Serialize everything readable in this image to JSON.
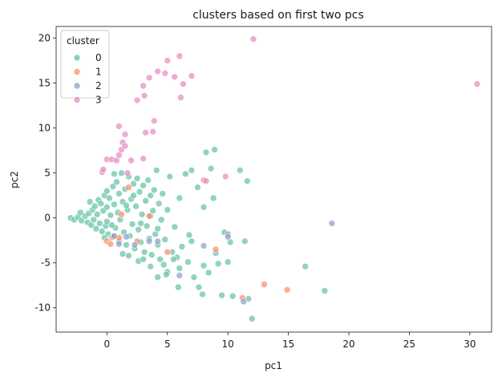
{
  "chart_data": {
    "type": "scatter",
    "title": "clusters based on first two pcs",
    "xlabel": "pc1",
    "ylabel": "pc2",
    "xlim": [
      -4.2,
      31.8
    ],
    "ylim": [
      -12.7,
      21.3
    ],
    "x_ticks": [
      0,
      5,
      10,
      15,
      20,
      25,
      30
    ],
    "y_ticks": [
      -10,
      -5,
      0,
      5,
      10,
      15,
      20
    ],
    "grid": false,
    "legend": {
      "title": "cluster",
      "position": "top-left"
    },
    "series": [
      {
        "name": "0",
        "color": "#66c2a5",
        "points": [
          [
            -3,
            0
          ],
          [
            -2.7,
            -0.2
          ],
          [
            -2.4,
            0.1
          ],
          [
            -2.1,
            -0.3
          ],
          [
            -1.8,
            0.2
          ],
          [
            -1.6,
            -0.5
          ],
          [
            -1.5,
            0.5
          ],
          [
            -1.3,
            -0.8
          ],
          [
            -1.2,
            0.9
          ],
          [
            -1.1,
            -0.2
          ],
          [
            -1,
            1.3
          ],
          [
            -0.9,
            -1.2
          ],
          [
            -0.8,
            0.4
          ],
          [
            -0.7,
            2
          ],
          [
            -0.6,
            -0.6
          ],
          [
            -0.5,
            1.6
          ],
          [
            -0.4,
            -1.5
          ],
          [
            -0.3,
            0.8
          ],
          [
            -0.2,
            2.5
          ],
          [
            -0.1,
            -0.9
          ],
          [
            0,
            3
          ],
          [
            0,
            1.2
          ],
          [
            0,
            -0.4
          ],
          [
            0.1,
            -1.8
          ],
          [
            0.2,
            2.2
          ],
          [
            0.3,
            0.3
          ],
          [
            0.4,
            -2.2
          ],
          [
            0.5,
            3.5
          ],
          [
            0.6,
            1.5
          ],
          [
            0.7,
            -1.1
          ],
          [
            0.8,
            4
          ],
          [
            0.9,
            0.6
          ],
          [
            1,
            -2.6
          ],
          [
            1,
            2.7
          ],
          [
            1.1,
            -0.2
          ],
          [
            1.2,
            5
          ],
          [
            1.3,
            1.8
          ],
          [
            1.4,
            -1.6
          ],
          [
            1.5,
            3.2
          ],
          [
            1.6,
            -3
          ],
          [
            1.7,
            0.9
          ],
          [
            1.8,
            4.6
          ],
          [
            1.9,
            -2
          ],
          [
            2,
            2.1
          ],
          [
            2.1,
            -0.7
          ],
          [
            2.2,
            3.8
          ],
          [
            2.3,
            -3.4
          ],
          [
            2.4,
            1.3
          ],
          [
            2.5,
            4.4
          ],
          [
            2.6,
            -1.3
          ],
          [
            2.7,
            2.9
          ],
          [
            2.8,
            -2.7
          ],
          [
            2.9,
            0.4
          ],
          [
            3,
            3.6
          ],
          [
            3.1,
            -3.8
          ],
          [
            3.2,
            1.9
          ],
          [
            3.3,
            -0.9
          ],
          [
            3.4,
            4.2
          ],
          [
            3.5,
            -2.3
          ],
          [
            3.6,
            2.5
          ],
          [
            3.7,
            -4.1
          ],
          [
            3.8,
            0.8
          ],
          [
            3.9,
            3.1
          ],
          [
            4,
            -1.8
          ],
          [
            4.1,
            5.3
          ],
          [
            4.2,
            -3
          ],
          [
            4.3,
            1.6
          ],
          [
            4.4,
            -4.6
          ],
          [
            4.5,
            -0.2
          ],
          [
            4.6,
            2.7
          ],
          [
            4.7,
            -5.2
          ],
          [
            4.8,
            -2.4
          ],
          [
            5,
            0.9
          ],
          [
            5,
            -6
          ],
          [
            5.2,
            4.6
          ],
          [
            5.4,
            -3.8
          ],
          [
            5.6,
            -1
          ],
          [
            5.8,
            -4.4
          ],
          [
            6,
            2.2
          ],
          [
            6,
            -5.6
          ],
          [
            6.2,
            -3.2
          ],
          [
            6.5,
            4.9
          ],
          [
            6.7,
            -4.9
          ],
          [
            7,
            5.3
          ],
          [
            7,
            -2.6
          ],
          [
            7.2,
            -6.6
          ],
          [
            7.5,
            3.4
          ],
          [
            7.6,
            -7.7
          ],
          [
            8,
            1.2
          ],
          [
            8,
            -5.3
          ],
          [
            8.2,
            7.3
          ],
          [
            8.4,
            -6.1
          ],
          [
            8.6,
            5.5
          ],
          [
            8.8,
            2.2
          ],
          [
            8.9,
            7.6
          ],
          [
            9,
            -3.9
          ],
          [
            9.2,
            -5.1
          ],
          [
            9.5,
            -8.6
          ],
          [
            10,
            -4.9
          ],
          [
            10.2,
            -2.7
          ],
          [
            11,
            5.3
          ],
          [
            11.4,
            -2.6
          ],
          [
            11.6,
            4.1
          ],
          [
            12,
            -11.2
          ],
          [
            16.4,
            -5.4
          ],
          [
            18,
            -8.1
          ],
          [
            3.6,
            -5.4
          ],
          [
            4.2,
            -6.6
          ],
          [
            2.6,
            -4.8
          ],
          [
            1.3,
            -4
          ],
          [
            5.5,
            -4.6
          ],
          [
            6.8,
            -1.9
          ],
          [
            9.7,
            -1.6
          ],
          [
            7.9,
            -8.5
          ],
          [
            10.4,
            -8.7
          ],
          [
            11.7,
            -9
          ],
          [
            5.9,
            -7.7
          ],
          [
            4.9,
            -6.3
          ],
          [
            -2.2,
            0.6
          ],
          [
            -0.2,
            -2.2
          ],
          [
            0.6,
            4.9
          ],
          [
            1.8,
            -4.2
          ],
          [
            3,
            -4.6
          ],
          [
            2.2,
            2.5
          ],
          [
            -1.4,
            1.8
          ],
          [
            0.4,
            -0.8
          ],
          [
            1.6,
            1.4
          ],
          [
            2.8,
            -0.6
          ],
          [
            3.6,
            0.2
          ],
          [
            4.2,
            -1.2
          ]
        ]
      },
      {
        "name": "1",
        "color": "#fc8d62",
        "points": [
          [
            0,
            -2.6
          ],
          [
            0.5,
            -2.1
          ],
          [
            1.2,
            0.4
          ],
          [
            1.8,
            3.4
          ],
          [
            2.5,
            -2.6
          ],
          [
            3.5,
            0.2
          ],
          [
            5,
            -3.8
          ],
          [
            8,
            4.2
          ],
          [
            9,
            -3.5
          ],
          [
            11.2,
            -8.9
          ],
          [
            13,
            -7.4
          ],
          [
            14.9,
            -8
          ],
          [
            0.3,
            -2.9
          ],
          [
            1,
            -2.2
          ]
        ]
      },
      {
        "name": "2",
        "color": "#8da0cb",
        "points": [
          [
            0.6,
            -2
          ],
          [
            1.6,
            -2.1
          ],
          [
            3.5,
            -2.6
          ],
          [
            4.2,
            -2.6
          ],
          [
            6,
            -6.4
          ],
          [
            8,
            -3.1
          ],
          [
            10,
            -1.8
          ],
          [
            10,
            -2.1
          ],
          [
            11.3,
            -9.3
          ],
          [
            18.6,
            -0.6
          ],
          [
            1,
            -2.9
          ],
          [
            2.3,
            -3
          ]
        ]
      },
      {
        "name": "3",
        "color": "#e78ac3",
        "points": [
          [
            -0.4,
            5.1
          ],
          [
            -0.3,
            5.4
          ],
          [
            0,
            6.5
          ],
          [
            0.4,
            6.5
          ],
          [
            0.8,
            6.4
          ],
          [
            1,
            7
          ],
          [
            1,
            10.2
          ],
          [
            1.2,
            7.6
          ],
          [
            1.3,
            8.4
          ],
          [
            1.5,
            8
          ],
          [
            1.5,
            9.3
          ],
          [
            1.7,
            5
          ],
          [
            2,
            6.4
          ],
          [
            2.5,
            13.1
          ],
          [
            3,
            6.6
          ],
          [
            3,
            14.7
          ],
          [
            3.2,
            9.5
          ],
          [
            3.5,
            15.6
          ],
          [
            3.8,
            9.6
          ],
          [
            3.9,
            10.8
          ],
          [
            4.2,
            16.3
          ],
          [
            4.8,
            16.1
          ],
          [
            5,
            17.5
          ],
          [
            5.6,
            15.7
          ],
          [
            6,
            18
          ],
          [
            6.1,
            13.4
          ],
          [
            6.3,
            14.9
          ],
          [
            7,
            15.8
          ],
          [
            8.2,
            4.1
          ],
          [
            9.8,
            4.6
          ],
          [
            12.1,
            19.9
          ],
          [
            30.6,
            14.9
          ],
          [
            3.1,
            13.6
          ]
        ]
      }
    ]
  }
}
